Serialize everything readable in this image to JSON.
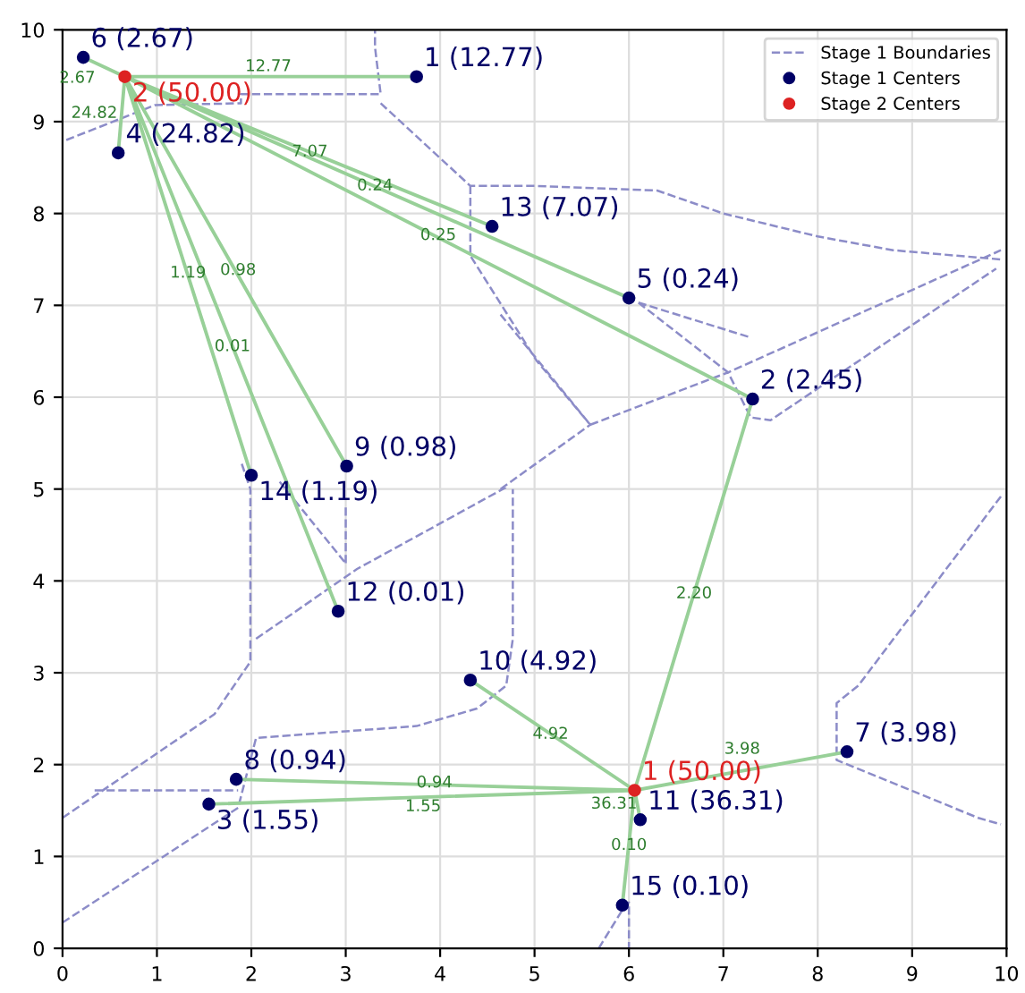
{
  "chart_data": {
    "type": "scatter",
    "xlim": [
      0,
      10
    ],
    "ylim": [
      0,
      10
    ],
    "xticks": [
      0,
      1,
      2,
      3,
      4,
      5,
      6,
      7,
      8,
      9,
      10
    ],
    "yticks": [
      0,
      1,
      2,
      3,
      4,
      5,
      6,
      7,
      8,
      9,
      10
    ],
    "grid": true,
    "legend": "top right",
    "series": [
      {
        "name": "Stage 1 Boundaries",
        "type": "line",
        "line_style": "dashed",
        "color": "#8c8cc8",
        "x": [
          0.04,
          0.98,
          1.89,
          1.89,
          3.37,
          3.31,
          3.31,
          null,
          3.37,
          4.32,
          5.02,
          6.3,
          7.0,
          8.0,
          8.8,
          9.94,
          null,
          4.32,
          4.32,
          5.02,
          5.59,
          null,
          6.1,
          7.29,
          null,
          6.1,
          7.05,
          7.29,
          7.5,
          9.89,
          null,
          4.64,
          5.59,
          7.05,
          9.94,
          null,
          4.64,
          5.59,
          null,
          0.0,
          1.61,
          1.99,
          1.99,
          1.89,
          null,
          0.0,
          1.86,
          2.05,
          3.75,
          4.39,
          4.7,
          4.77,
          4.77,
          null,
          0.34,
          1.86,
          null,
          2.05,
          3.12,
          4.7,
          null,
          2.3,
          3.0,
          null,
          3.0,
          3.0,
          null,
          9.94,
          8.43,
          8.2,
          8.2,
          9.7,
          9.94,
          null,
          5.68,
          5.8,
          5.95,
          6.0,
          6.0
        ],
        "values": [
          8.8,
          9.18,
          9.2,
          9.3,
          9.3,
          9.81,
          10.0,
          null,
          9.2,
          8.3,
          8.3,
          8.25,
          8.0,
          7.75,
          7.6,
          7.5,
          null,
          8.3,
          7.54,
          6.4,
          5.7,
          null,
          7.03,
          6.65,
          null,
          7.03,
          6.27,
          5.78,
          5.75,
          7.4,
          null,
          6.9,
          5.7,
          6.27,
          7.6,
          null,
          5.0,
          5.7,
          null,
          1.42,
          2.55,
          3.12,
          5.0,
          5.3,
          null,
          0.28,
          1.53,
          2.29,
          2.42,
          2.61,
          2.86,
          3.37,
          5.0,
          null,
          1.72,
          1.72,
          null,
          3.37,
          4.13,
          5.02,
          null,
          5.08,
          4.19,
          null,
          4.8,
          4.19,
          null,
          4.92,
          2.86,
          2.67,
          2.05,
          1.42,
          1.35,
          null,
          0.0,
          0.2,
          0.45,
          0.5,
          0.0
        ]
      },
      {
        "type": "line",
        "line_style": "solid",
        "color": "#98d098",
        "x": [
          0.66,
          0.22,
          null,
          0.66,
          3.75,
          null,
          0.66,
          0.59,
          null,
          0.66,
          4.55,
          null,
          0.66,
          6.0,
          null,
          0.66,
          7.31,
          null,
          0.66,
          2.0,
          null,
          0.66,
          3.01,
          null,
          0.66,
          2.92,
          null,
          6.06,
          7.31,
          null,
          6.06,
          4.32,
          null,
          6.06,
          1.84,
          null,
          6.06,
          1.55,
          null,
          6.06,
          8.31,
          null,
          6.06,
          6.12,
          null,
          6.06,
          5.93
        ],
        "values": [
          9.49,
          9.7,
          null,
          9.49,
          9.49,
          null,
          9.49,
          8.66,
          null,
          9.49,
          7.86,
          null,
          9.49,
          7.08,
          null,
          9.49,
          5.98,
          null,
          9.49,
          5.15,
          null,
          9.49,
          5.25,
          null,
          9.49,
          3.67,
          null,
          1.72,
          5.98,
          null,
          1.72,
          2.92,
          null,
          1.72,
          1.84,
          null,
          1.72,
          1.57,
          null,
          1.72,
          2.14,
          null,
          1.72,
          1.4,
          null,
          1.72,
          0.47
        ]
      },
      {
        "name": "Stage 1 Centers",
        "type": "scatter",
        "color": "#000066",
        "x": [
          0.22,
          3.75,
          0.59,
          4.55,
          6.0,
          7.31,
          2.0,
          3.01,
          2.92,
          4.32,
          8.31,
          1.84,
          1.55,
          6.12,
          5.93
        ],
        "values": [
          9.7,
          9.49,
          8.66,
          7.86,
          7.08,
          5.98,
          5.15,
          5.25,
          3.67,
          2.92,
          2.14,
          1.84,
          1.57,
          1.4,
          0.47
        ],
        "value_labels": [
          "6 (2.67)",
          "1 (12.77)",
          "4 (24.82)",
          "13 (7.07)",
          "5 (0.24)",
          "2 (2.45)",
          "14 (1.19)",
          "9 (0.98)",
          "12 (0.01)",
          "10 (4.92)",
          "7 (3.98)",
          "8 (0.94)",
          "3 (1.55)",
          "11 (36.31)",
          "15 (0.10)"
        ]
      },
      {
        "name": "Stage 2 Centers",
        "type": "scatter",
        "color": "#dd2222",
        "x": [
          0.66,
          6.06
        ],
        "values": [
          9.49,
          1.72
        ],
        "value_labels": [
          "2 (50.00)",
          "1 (50.00)"
        ]
      }
    ],
    "annotations": [
      {
        "text": "12.77",
        "x": 2.18,
        "y": 9.49
      },
      {
        "text": "2.67",
        "x": 0.42,
        "y": 9.58
      },
      {
        "text": "24.82",
        "x": 0.6,
        "y": 9.09
      },
      {
        "text": "7.07",
        "x": 2.62,
        "y": 8.67
      },
      {
        "text": "0.24",
        "x": 3.31,
        "y": 8.3
      },
      {
        "text": "0.25",
        "x": 3.98,
        "y": 7.76
      },
      {
        "text": "1.19",
        "x": 1.33,
        "y": 7.35
      },
      {
        "text": "0.98",
        "x": 1.86,
        "y": 7.38
      },
      {
        "text": "0.01",
        "x": 1.8,
        "y": 6.55
      },
      {
        "text": "0.94",
        "x": 3.94,
        "y": 1.8
      },
      {
        "text": "1.55",
        "x": 3.82,
        "y": 1.65
      },
      {
        "text": "4.92",
        "x": 5.17,
        "y": 2.33
      },
      {
        "text": "2.20",
        "x": 6.69,
        "y": 3.86
      },
      {
        "text": "3.98",
        "x": 7.2,
        "y": 1.95
      },
      {
        "text": "36.31",
        "x": 6.0,
        "y": 1.57
      },
      {
        "text": "0.10",
        "x": 6.0,
        "y": 1.12
      }
    ]
  }
}
